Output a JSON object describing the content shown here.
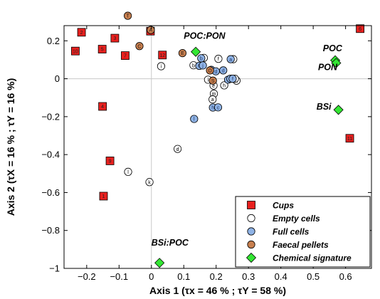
{
  "chart_data": {
    "type": "scatter",
    "xlabel": "Axis 1 (τx = 46 % ; τY = 58 %)",
    "ylabel": "Axis 2 (τX = 16 % ; τY = 16 %)",
    "xlim": [
      -0.27,
      0.68
    ],
    "ylim": [
      -1.0,
      0.28
    ],
    "xticks": [
      -0.2,
      -0.1,
      0,
      0.1,
      0.2,
      0.3,
      0.4,
      0.5,
      0.6
    ],
    "yticks": [
      0.2,
      0,
      -0.2,
      -0.4,
      -0.6,
      -0.8,
      -1
    ],
    "xtick_labels": [
      "−0.2",
      "−0.1",
      "0",
      "0.1",
      "0.2",
      "0.3",
      "0.4",
      "0.5",
      "0.6"
    ],
    "ytick_labels": [
      "0.2",
      "0",
      "−0.2",
      "−0.4",
      "−0.6",
      "−0.8",
      "−1"
    ],
    "zero_lines": true,
    "legend_position": "bottom-right",
    "colors": {
      "cups": "#e8201e",
      "empty": "#ffffff",
      "full": "#8fb3e6",
      "faecal": "#c77f4f",
      "chemical": "#33e633",
      "faecal_label": "#2b1a10"
    },
    "series": [
      {
        "name": "Cups",
        "marker": "square",
        "points": [
          {
            "x": -0.216,
            "y": 0.245,
            "label": "2"
          },
          {
            "x": -0.235,
            "y": 0.146,
            "label": "10"
          },
          {
            "x": -0.152,
            "y": 0.156,
            "label": "5"
          },
          {
            "x": -0.113,
            "y": 0.214,
            "label": "3"
          },
          {
            "x": -0.081,
            "y": 0.122,
            "label": "7"
          },
          {
            "x": -0.003,
            "y": 0.251,
            "label": "8"
          },
          {
            "x": 0.034,
            "y": 0.125,
            "label": "12"
          },
          {
            "x": -0.151,
            "y": -0.146,
            "label": "4"
          },
          {
            "x": -0.128,
            "y": -0.433,
            "label": "9"
          },
          {
            "x": -0.148,
            "y": -0.619,
            "label": "1"
          },
          {
            "x": 0.645,
            "y": 0.264,
            "label": "6"
          },
          {
            "x": 0.613,
            "y": -0.314,
            "label": "11"
          }
        ]
      },
      {
        "name": "Empty cells",
        "marker": "circle",
        "points": [
          {
            "x": 0.03,
            "y": 0.066,
            "label": "i"
          },
          {
            "x": 0.13,
            "y": 0.071,
            "label": "b"
          },
          {
            "x": 0.162,
            "y": 0.11,
            "label": "j"
          },
          {
            "x": 0.207,
            "y": 0.105,
            "label": "f"
          },
          {
            "x": 0.253,
            "y": 0.103,
            "label": "c"
          },
          {
            "x": 0.263,
            "y": -0.01,
            "label": "k"
          },
          {
            "x": 0.25,
            "y": 0.0,
            "label": "g"
          },
          {
            "x": 0.258,
            "y": 0.0,
            "label": "n"
          },
          {
            "x": 0.175,
            "y": -0.005,
            "label": "l"
          },
          {
            "x": 0.225,
            "y": -0.035,
            "label": "h"
          },
          {
            "x": 0.192,
            "y": -0.036,
            "label": "e"
          },
          {
            "x": 0.193,
            "y": -0.079,
            "label": "m"
          },
          {
            "x": 0.189,
            "y": -0.109,
            "label": "a"
          },
          {
            "x": 0.081,
            "y": -0.37,
            "label": "d"
          },
          {
            "x": -0.072,
            "y": -0.491,
            "label": "l"
          },
          {
            "x": -0.006,
            "y": -0.545,
            "label": "k"
          }
        ]
      },
      {
        "name": "Full cells",
        "marker": "circle",
        "points": [
          {
            "x": 0.148,
            "y": 0.068,
            "label": "h"
          },
          {
            "x": 0.154,
            "y": 0.108,
            "label": "b"
          },
          {
            "x": 0.159,
            "y": 0.07,
            "label": "j"
          },
          {
            "x": 0.185,
            "y": 0.047,
            "label": "k"
          },
          {
            "x": 0.199,
            "y": 0.039,
            "label": "d"
          },
          {
            "x": 0.222,
            "y": 0.044,
            "label": "d"
          },
          {
            "x": 0.245,
            "y": 0.103,
            "label": "a"
          },
          {
            "x": 0.237,
            "y": -0.005,
            "label": "e"
          },
          {
            "x": 0.244,
            "y": 0.0,
            "label": "h"
          },
          {
            "x": 0.251,
            "y": 0.0,
            "label": "f"
          },
          {
            "x": 0.19,
            "y": -0.152,
            "label": "h"
          },
          {
            "x": 0.206,
            "y": -0.151,
            "label": "c"
          },
          {
            "x": 0.132,
            "y": -0.212,
            "label": "l"
          }
        ]
      },
      {
        "name": "Faecal pellets",
        "marker": "circle",
        "points": [
          {
            "x": -0.073,
            "y": 0.332,
            "label": "T"
          },
          {
            "x": -0.037,
            "y": 0.172,
            "label": "C"
          },
          {
            "x": -0.002,
            "y": 0.257,
            "label": "A"
          },
          {
            "x": 0.096,
            "y": 0.135,
            "label": "E"
          },
          {
            "x": 0.181,
            "y": 0.044,
            "label": "O"
          },
          {
            "x": 0.19,
            "y": -0.01,
            "label": "S"
          }
        ]
      },
      {
        "name": "Chemical signature",
        "marker": "diamond",
        "points": [
          {
            "x": 0.137,
            "y": 0.142
          },
          {
            "x": 0.568,
            "y": 0.097
          },
          {
            "x": 0.571,
            "y": 0.083
          },
          {
            "x": 0.578,
            "y": -0.164
          },
          {
            "x": 0.025,
            "y": -0.971
          }
        ]
      }
    ],
    "annotations": [
      {
        "text": "POC:PON",
        "x": 0.1,
        "y": 0.21
      },
      {
        "text": "POC",
        "x": 0.53,
        "y": 0.145
      },
      {
        "text": "PON",
        "x": 0.515,
        "y": 0.045
      },
      {
        "text": "BSi",
        "x": 0.51,
        "y": -0.162
      },
      {
        "text": "BSi:POC",
        "x": 0.0,
        "y": -0.88
      }
    ]
  }
}
